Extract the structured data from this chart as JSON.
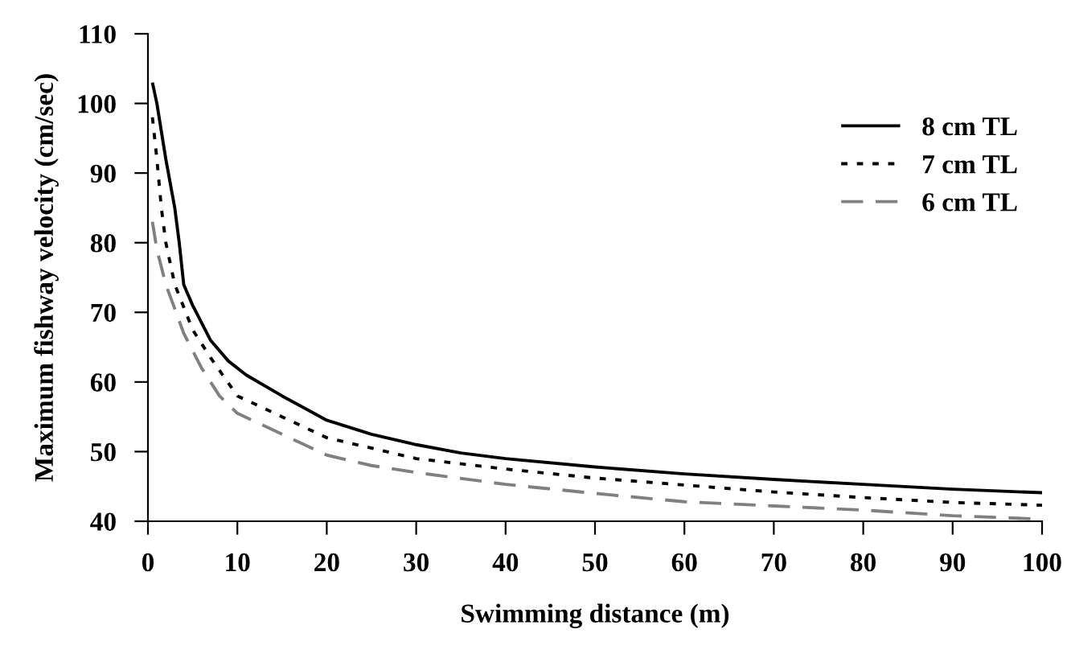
{
  "chart_data": {
    "type": "line",
    "xlabel": "Swimming distance (m)",
    "ylabel": "Maximum fishway velocity (cm/sec)",
    "xlim": [
      0,
      100
    ],
    "ylim": [
      40,
      110
    ],
    "xticks": [
      0,
      10,
      20,
      30,
      40,
      50,
      60,
      70,
      80,
      90,
      100
    ],
    "yticks": [
      40,
      50,
      60,
      70,
      80,
      90,
      100,
      110
    ],
    "grid": false,
    "legend": "right",
    "series": [
      {
        "name": "8 cm TL",
        "color": "#000000",
        "line_style": "solid",
        "x": [
          0.5,
          1,
          2,
          3,
          3.5,
          4,
          5,
          7,
          9,
          11,
          15,
          20,
          25,
          30,
          35,
          40,
          50,
          60,
          70,
          80,
          90,
          100
        ],
        "values": [
          103,
          100,
          92,
          85,
          80,
          74,
          71,
          66,
          63,
          61,
          58,
          54.5,
          52.5,
          51,
          49.8,
          49,
          47.8,
          46.8,
          46,
          45.3,
          44.6,
          44.1
        ]
      },
      {
        "name": "7 cm TL",
        "color": "#000000",
        "line_style": "dotted",
        "x": [
          0.5,
          1,
          1.5,
          2,
          3,
          5,
          7,
          10,
          15,
          20,
          30,
          40,
          50,
          60,
          70,
          80,
          90,
          100
        ],
        "values": [
          98,
          92,
          85,
          80,
          74,
          67.5,
          63.5,
          58,
          55,
          52,
          49,
          47.5,
          46.2,
          45.2,
          44.2,
          43.4,
          42.7,
          42.3
        ]
      },
      {
        "name": "6 cm TL",
        "color": "#808080",
        "line_style": "dashed",
        "x": [
          0.5,
          1,
          2,
          4,
          6,
          8,
          10,
          15,
          20,
          25,
          30,
          40,
          50,
          60,
          70,
          80,
          90,
          100
        ],
        "values": [
          83,
          79,
          74,
          67,
          62,
          58,
          55.5,
          52.5,
          49.5,
          48,
          47,
          45.3,
          44,
          42.8,
          42.2,
          41.6,
          40.8,
          40.3
        ]
      }
    ]
  }
}
